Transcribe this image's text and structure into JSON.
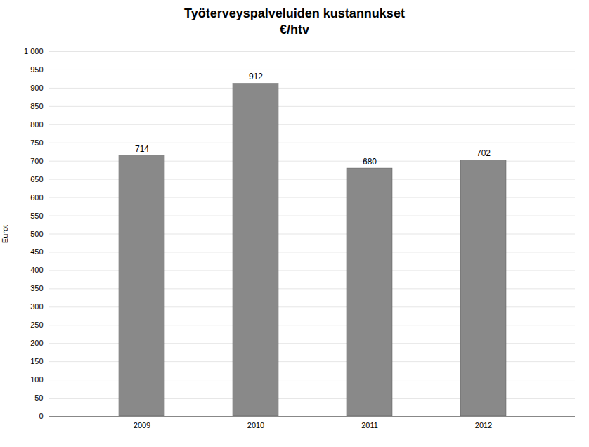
{
  "chart_data": {
    "type": "bar",
    "title": "Työterveyspalveluiden kustannukset\n€/htv",
    "categories": [
      "2009",
      "2010",
      "2011",
      "2012"
    ],
    "values": [
      714,
      912,
      680,
      702
    ],
    "color": "#898989",
    "ylabel": "Eurot",
    "ylim": [
      0,
      1000
    ],
    "yticks": [
      0,
      50,
      100,
      150,
      200,
      250,
      300,
      350,
      400,
      450,
      500,
      550,
      600,
      650,
      700,
      750,
      800,
      850,
      900,
      950,
      {
        "value": 1000,
        "label": "1 000"
      }
    ],
    "grid": true,
    "data_labels": true
  }
}
